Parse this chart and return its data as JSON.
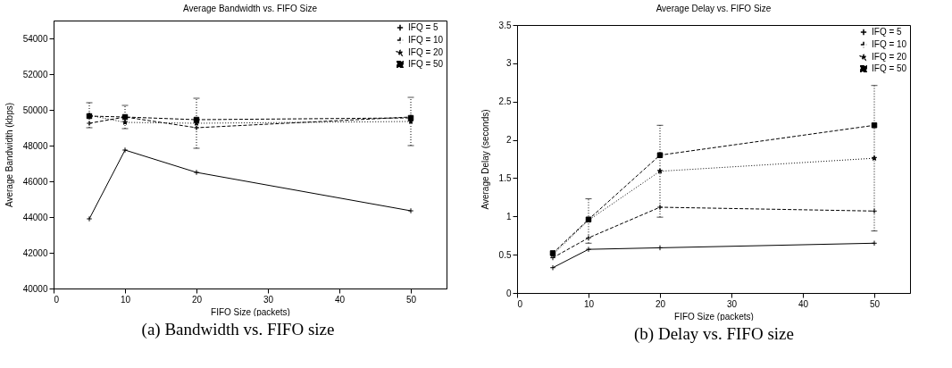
{
  "chart_data": [
    {
      "type": "line",
      "title": "Average Bandwidth vs. FIFO Size",
      "xlabel": "FIFO Size (packets)",
      "ylabel": "Average Bandwidth (kbps)",
      "x": [
        5,
        10,
        20,
        50
      ],
      "xlim": [
        0,
        55
      ],
      "xticks": [
        0,
        10,
        20,
        30,
        40,
        50
      ],
      "ylim": [
        40000,
        55000
      ],
      "yticks": [
        40000,
        42000,
        44000,
        46000,
        48000,
        50000,
        52000,
        54000
      ],
      "legend": "top right",
      "grid": false,
      "series": [
        {
          "name": "IFQ =  5",
          "color": "#000000",
          "marker": "cross",
          "line_style": "solid",
          "values": [
            43900,
            47750,
            46500,
            44350
          ]
        },
        {
          "name": "IFQ = 10",
          "color": "#000000",
          "marker": "cross",
          "line_style": "dashed",
          "values": [
            49250,
            49600,
            49000,
            49600
          ]
        },
        {
          "name": "IFQ = 20",
          "color": "#000000",
          "marker": "star",
          "line_style": "dotted",
          "values": [
            49700,
            49300,
            49250,
            49350
          ],
          "errors": [
            [
              49000,
              50400
            ],
            [
              48950,
              50250
            ],
            [
              47850,
              50650
            ],
            [
              48000,
              50700
            ]
          ]
        },
        {
          "name": "IFQ = 50",
          "color": "#000000",
          "marker": "square",
          "line_style": "dashed",
          "values": [
            49650,
            49600,
            49450,
            49550
          ]
        }
      ],
      "annotations": [
        "(a) Bandwidth vs. FIFO size"
      ]
    },
    {
      "type": "line",
      "title": "Average Delay vs. FIFO Size",
      "xlabel": "FIFO Size (packets)",
      "ylabel": "Average Delay (seconds)",
      "x": [
        5,
        10,
        20,
        50
      ],
      "xlim": [
        0,
        55
      ],
      "xticks": [
        0,
        10,
        20,
        30,
        40,
        50
      ],
      "ylim": [
        0,
        3.5
      ],
      "yticks": [
        0,
        0.5,
        1,
        1.5,
        2,
        2.5,
        3,
        3.5
      ],
      "legend": "top right",
      "grid": false,
      "series": [
        {
          "name": "IFQ =  5",
          "color": "#000000",
          "marker": "cross",
          "line_style": "solid",
          "values": [
            0.33,
            0.57,
            0.59,
            0.65
          ]
        },
        {
          "name": "IFQ = 10",
          "color": "#000000",
          "marker": "cross",
          "line_style": "dashed",
          "values": [
            0.46,
            0.72,
            1.12,
            1.07
          ]
        },
        {
          "name": "IFQ = 20",
          "color": "#000000",
          "marker": "star",
          "line_style": "dotted",
          "values": [
            0.5,
            0.95,
            1.59,
            1.76
          ],
          "errors": [
            null,
            [
              0.65,
              1.23
            ],
            [
              0.99,
              2.19
            ],
            [
              0.81,
              2.71
            ]
          ]
        },
        {
          "name": "IFQ = 50",
          "color": "#000000",
          "marker": "square",
          "line_style": "dashed",
          "values": [
            0.52,
            0.96,
            1.8,
            2.19
          ]
        }
      ],
      "annotations": [
        "(b) Delay vs. FIFO size"
      ]
    }
  ]
}
